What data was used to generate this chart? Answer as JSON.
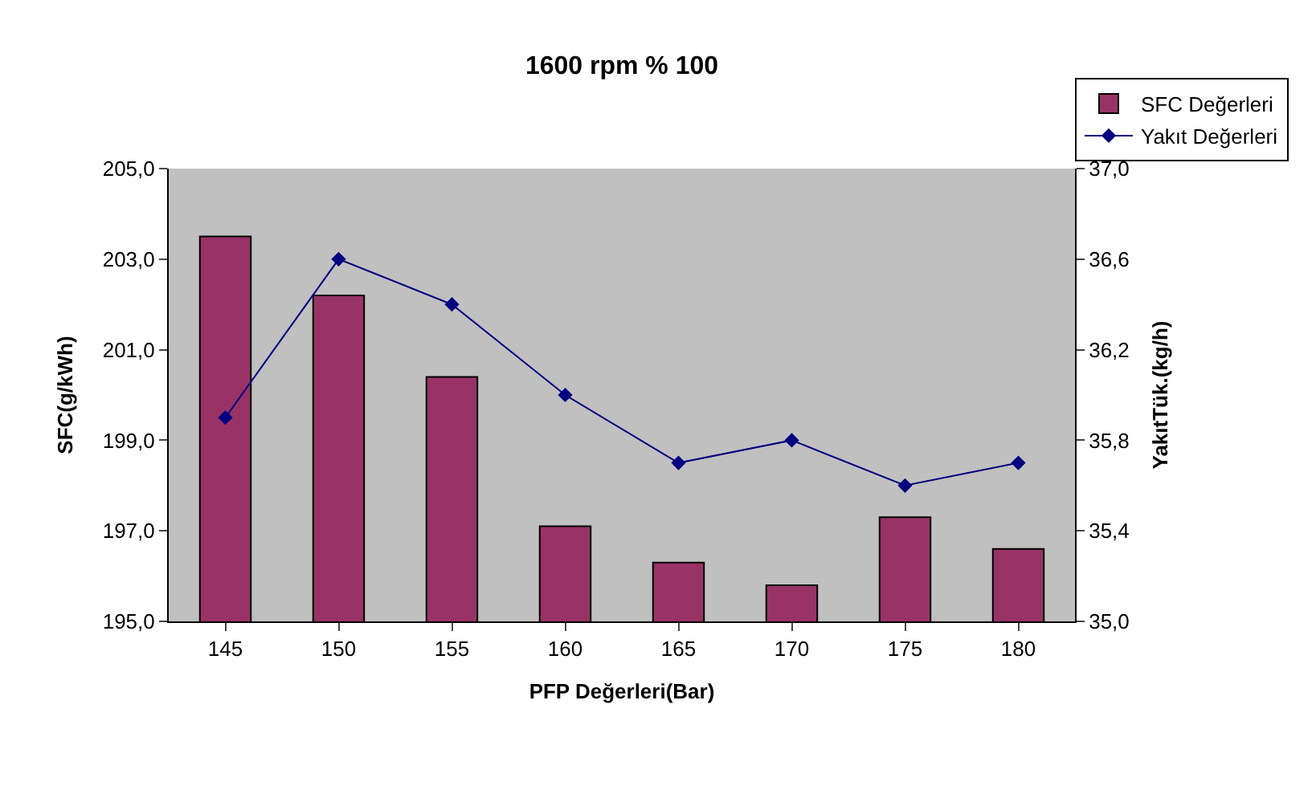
{
  "chart_data": {
    "type": "bar",
    "title": "1600 rpm % 100",
    "xlabel": "PFP Değerleri(Bar)",
    "ylabel": "SFC(g/kWh)",
    "y2label": "YakıtTük.(kg/h)",
    "categories": [
      "145",
      "150",
      "155",
      "160",
      "165",
      "170",
      "175",
      "180"
    ],
    "series": [
      {
        "name": "SFC Değerleri",
        "color": "#993366",
        "values": [
          203.5,
          202.2,
          200.4,
          197.1,
          196.3,
          195.8,
          197.3,
          196.6
        ]
      },
      {
        "name": "Yakıt Değerleri",
        "type": "line",
        "axis": "y2",
        "color": "#000080",
        "marker": "diamond",
        "values": [
          35.9,
          36.6,
          36.4,
          36.0,
          35.7,
          35.8,
          35.6,
          35.7
        ]
      }
    ],
    "ylim": [
      195,
      205
    ],
    "yticks": [
      {
        "value": 195,
        "label": "195,0"
      },
      {
        "value": 197,
        "label": "197,0"
      },
      {
        "value": 199,
        "label": "199,0"
      },
      {
        "value": 201,
        "label": "201,0"
      },
      {
        "value": 203,
        "label": "203,0"
      },
      {
        "value": 205,
        "label": "205,0"
      }
    ],
    "y2lim": [
      35,
      37
    ],
    "y2ticks": [
      {
        "value": 35,
        "label": "35,0"
      },
      {
        "value": 35.4,
        "label": "35,4"
      },
      {
        "value": 35.8,
        "label": "35,8"
      },
      {
        "value": 36.2,
        "label": "36,2"
      },
      {
        "value": 36.6,
        "label": "36,6"
      },
      {
        "value": 37,
        "label": "37,0"
      }
    ],
    "grid": false,
    "legend": "top right"
  }
}
